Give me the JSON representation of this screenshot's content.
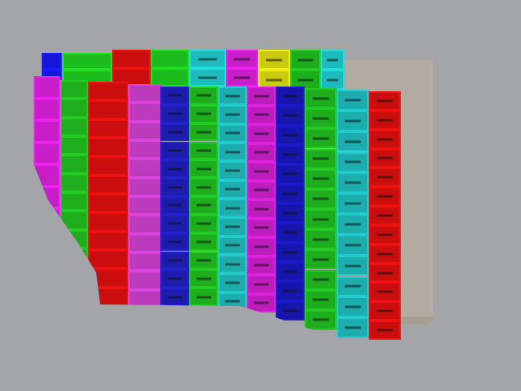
{
  "viewport": {
    "background": "#a3a5a8",
    "structure_color": "#b3ab9f",
    "back_row_colors": [
      "#1a1aff",
      "#22dd22",
      "#ee1111",
      "#22dd22",
      "#22dddd",
      "#ee22ee",
      "#eeee11",
      "#22cc22",
      "#22dddd"
    ],
    "front_column_colors": [
      "#ee22ee",
      "#22cc22",
      "#ee1111",
      "#dd44dd",
      "#2222cc",
      "#22cc22",
      "#22cccc",
      "#dd22dd",
      "#1a1acc",
      "#22cc22",
      "#22cccc",
      "#ee1111"
    ]
  }
}
